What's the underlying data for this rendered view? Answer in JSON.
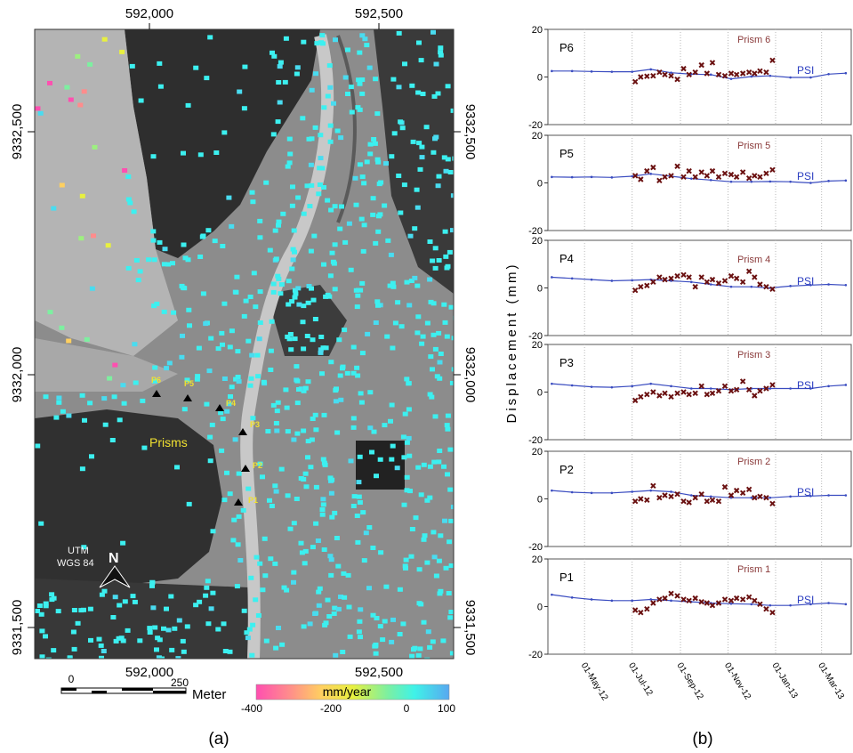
{
  "map": {
    "top_x_ticks": [
      "592,000",
      "592,500"
    ],
    "bottom_x_ticks": [
      "592,000",
      "592,500"
    ],
    "left_y_ticks": [
      "9332,500",
      "9332,000",
      "9331,500"
    ],
    "right_y_ticks": [
      "9332,500",
      "9332,000",
      "9331,500"
    ],
    "prism_labels": [
      "P6",
      "P5",
      "P4",
      "P3",
      "P2",
      "P1"
    ],
    "prisms_label": "Prisms",
    "north_label": "N",
    "crs_label_1": "UTM",
    "crs_label_2": "WGS 84",
    "scalebar": {
      "start": "0",
      "end": "250",
      "unit": "Meter"
    },
    "colorbar": {
      "title": "mm/year",
      "ticks": [
        "-400",
        "-200",
        "0",
        "100"
      ],
      "colors": [
        "#ff4fb0",
        "#ff8c8c",
        "#ffd060",
        "#e8f040",
        "#7df0a0",
        "#3ff2e8",
        "#58a8f0"
      ]
    },
    "colors": {
      "ps_cyan": "#3cf0f0",
      "prism_marker": "#000000",
      "prism_text": "#f0e030"
    }
  },
  "chart_data": [
    {
      "type": "line",
      "panel_label": "P6",
      "series_labels": [
        "Prism 6",
        "PSI"
      ],
      "ylim": [
        -20,
        20
      ],
      "yticks": [
        "20",
        "0",
        "-20"
      ],
      "x_ticks": [
        "01-May-12",
        "01-Jul-12",
        "01-Sep-12",
        "01-Nov-12",
        "01-Jan-13",
        "01-Mar-13"
      ],
      "series": [
        {
          "name": "PSI",
          "x": [
            "2012-03-20",
            "2012-04-15",
            "2012-05-10",
            "2012-06-05",
            "2012-07-01",
            "2012-07-25",
            "2012-08-20",
            "2012-09-15",
            "2012-10-10",
            "2012-11-05",
            "2012-12-01",
            "2012-12-25",
            "2013-01-20",
            "2013-02-15",
            "2013-03-10",
            "2013-04-01"
          ],
          "values": [
            2.5,
            2.5,
            2.3,
            2.2,
            2.2,
            3.2,
            1.8,
            1.2,
            1.0,
            -0.8,
            0.2,
            0.5,
            -0.2,
            -0.2,
            1.2,
            1.6
          ]
        },
        {
          "name": "Prism 6",
          "x": [
            "2012-07-05",
            "2012-07-12",
            "2012-07-20",
            "2012-07-28",
            "2012-08-05",
            "2012-08-12",
            "2012-08-20",
            "2012-08-28",
            "2012-09-05",
            "2012-09-12",
            "2012-09-20",
            "2012-09-28",
            "2012-10-05",
            "2012-10-12",
            "2012-10-20",
            "2012-10-28",
            "2012-11-05",
            "2012-11-12",
            "2012-11-20",
            "2012-11-28",
            "2012-12-05",
            "2012-12-12",
            "2012-12-20",
            "2012-12-28"
          ],
          "values": [
            -2.0,
            0.0,
            0.3,
            0.5,
            2.0,
            1.0,
            0.5,
            -1.0,
            3.5,
            1.0,
            2.0,
            5.0,
            1.5,
            6.0,
            1.0,
            0.5,
            1.5,
            1.0,
            1.5,
            2.0,
            1.5,
            2.5,
            2.0,
            7.0
          ]
        }
      ]
    },
    {
      "type": "line",
      "panel_label": "P5",
      "series_labels": [
        "Prism 5",
        "PSI"
      ],
      "ylim": [
        -20,
        20
      ],
      "yticks": [
        "20",
        "0",
        "-20"
      ],
      "x_ticks": [
        "01-May-12",
        "01-Jul-12",
        "01-Sep-12",
        "01-Nov-12",
        "01-Jan-13",
        "01-Mar-13"
      ],
      "series": [
        {
          "name": "PSI",
          "x": [
            "2012-03-20",
            "2012-04-15",
            "2012-05-10",
            "2012-06-05",
            "2012-07-01",
            "2012-07-25",
            "2012-08-20",
            "2012-09-15",
            "2012-10-10",
            "2012-11-05",
            "2012-12-01",
            "2012-12-25",
            "2013-01-20",
            "2013-02-15",
            "2013-03-10",
            "2013-04-01"
          ],
          "values": [
            2.5,
            2.4,
            2.5,
            2.3,
            2.8,
            3.8,
            2.8,
            1.8,
            1.2,
            0.5,
            0.5,
            0.6,
            0.5,
            0.0,
            0.8,
            1.0
          ]
        },
        {
          "name": "Prism 5",
          "x": [
            "2012-07-05",
            "2012-07-12",
            "2012-07-20",
            "2012-07-28",
            "2012-08-05",
            "2012-08-12",
            "2012-08-20",
            "2012-08-28",
            "2012-09-05",
            "2012-09-12",
            "2012-09-20",
            "2012-09-28",
            "2012-10-05",
            "2012-10-12",
            "2012-10-20",
            "2012-10-28",
            "2012-11-05",
            "2012-11-12",
            "2012-11-20",
            "2012-11-28",
            "2012-12-05",
            "2012-12-12",
            "2012-12-20",
            "2012-12-28"
          ],
          "values": [
            3.0,
            1.5,
            5.0,
            6.5,
            1.0,
            2.5,
            3.0,
            7.0,
            2.5,
            5.0,
            2.5,
            4.5,
            3.0,
            5.0,
            2.5,
            4.0,
            3.5,
            2.5,
            4.5,
            2.0,
            3.0,
            2.5,
            4.0,
            5.5
          ]
        }
      ]
    },
    {
      "type": "line",
      "panel_label": "P4",
      "series_labels": [
        "Prism 4",
        "PSI"
      ],
      "ylim": [
        -20,
        20
      ],
      "yticks": [
        "20",
        "0",
        "-20"
      ],
      "x_ticks": [
        "01-May-12",
        "01-Jul-12",
        "01-Sep-12",
        "01-Nov-12",
        "01-Jan-13",
        "01-Mar-13"
      ],
      "series": [
        {
          "name": "PSI",
          "x": [
            "2012-03-20",
            "2012-04-15",
            "2012-05-10",
            "2012-06-05",
            "2012-07-01",
            "2012-07-25",
            "2012-08-20",
            "2012-09-15",
            "2012-10-10",
            "2012-11-05",
            "2012-12-01",
            "2012-12-25",
            "2013-01-20",
            "2013-02-15",
            "2013-03-10",
            "2013-04-01"
          ],
          "values": [
            4.5,
            4.0,
            3.5,
            3.0,
            3.2,
            3.5,
            3.0,
            2.5,
            1.5,
            0.5,
            0.5,
            0.0,
            0.8,
            1.2,
            1.5,
            1.2
          ]
        },
        {
          "name": "Prism 4",
          "x": [
            "2012-07-05",
            "2012-07-12",
            "2012-07-20",
            "2012-07-28",
            "2012-08-05",
            "2012-08-12",
            "2012-08-20",
            "2012-08-28",
            "2012-09-05",
            "2012-09-12",
            "2012-09-20",
            "2012-09-28",
            "2012-10-05",
            "2012-10-12",
            "2012-10-20",
            "2012-10-28",
            "2012-11-05",
            "2012-11-12",
            "2012-11-20",
            "2012-11-28",
            "2012-12-05",
            "2012-12-12",
            "2012-12-20",
            "2012-12-28"
          ],
          "values": [
            -1.0,
            0.5,
            1.0,
            2.5,
            4.5,
            3.5,
            4.0,
            5.0,
            5.5,
            4.5,
            0.5,
            4.5,
            2.5,
            3.5,
            2.0,
            3.0,
            5.0,
            4.0,
            2.5,
            7.0,
            4.5,
            1.5,
            0.5,
            -0.5
          ]
        }
      ]
    },
    {
      "type": "line",
      "panel_label": "P3",
      "series_labels": [
        "Prism 3",
        "PSI"
      ],
      "ylim": [
        -20,
        20
      ],
      "yticks": [
        "20",
        "0",
        "-20"
      ],
      "x_ticks": [
        "01-May-12",
        "01-Jul-12",
        "01-Sep-12",
        "01-Nov-12",
        "01-Jan-13",
        "01-Mar-13"
      ],
      "series": [
        {
          "name": "PSI",
          "x": [
            "2012-03-20",
            "2012-04-15",
            "2012-05-10",
            "2012-06-05",
            "2012-07-01",
            "2012-07-25",
            "2012-08-20",
            "2012-09-15",
            "2012-10-10",
            "2012-11-05",
            "2012-12-01",
            "2012-12-25",
            "2013-01-20",
            "2013-02-15",
            "2013-03-10",
            "2013-04-01"
          ],
          "values": [
            3.5,
            2.8,
            2.2,
            2.0,
            2.5,
            3.5,
            2.5,
            1.5,
            1.5,
            1.0,
            1.5,
            1.5,
            1.5,
            1.5,
            2.5,
            3.0
          ]
        },
        {
          "name": "Prism 3",
          "x": [
            "2012-07-05",
            "2012-07-12",
            "2012-07-20",
            "2012-07-28",
            "2012-08-05",
            "2012-08-12",
            "2012-08-20",
            "2012-08-28",
            "2012-09-05",
            "2012-09-12",
            "2012-09-20",
            "2012-09-28",
            "2012-10-05",
            "2012-10-12",
            "2012-10-20",
            "2012-10-28",
            "2012-11-05",
            "2012-11-12",
            "2012-11-20",
            "2012-11-28",
            "2012-12-05",
            "2012-12-12",
            "2012-12-20",
            "2012-12-28"
          ],
          "values": [
            -3.5,
            -2.0,
            -1.0,
            0.0,
            -1.5,
            -0.5,
            -2.0,
            -0.5,
            0.0,
            -1.0,
            -0.5,
            2.5,
            -1.0,
            -0.5,
            0.5,
            2.5,
            0.5,
            1.0,
            4.5,
            1.0,
            -1.5,
            0.5,
            1.5,
            3.0
          ]
        }
      ]
    },
    {
      "type": "line",
      "panel_label": "P2",
      "series_labels": [
        "Prism 2",
        "PSI"
      ],
      "ylim": [
        -20,
        20
      ],
      "yticks": [
        "20",
        "0",
        "-20"
      ],
      "x_ticks": [
        "01-May-12",
        "01-Jul-12",
        "01-Sep-12",
        "01-Nov-12",
        "01-Jan-13",
        "01-Mar-13"
      ],
      "series": [
        {
          "name": "PSI",
          "x": [
            "2012-03-20",
            "2012-04-15",
            "2012-05-10",
            "2012-06-05",
            "2012-07-01",
            "2012-07-25",
            "2012-08-20",
            "2012-09-15",
            "2012-10-10",
            "2012-11-05",
            "2012-12-01",
            "2012-12-25",
            "2013-01-20",
            "2013-02-15",
            "2013-03-10",
            "2013-04-01"
          ],
          "values": [
            3.5,
            2.8,
            2.5,
            2.5,
            3.0,
            3.5,
            3.0,
            1.5,
            1.0,
            0.5,
            0.5,
            0.5,
            1.0,
            1.2,
            1.5,
            1.5
          ]
        },
        {
          "name": "Prism 2",
          "x": [
            "2012-07-05",
            "2012-07-12",
            "2012-07-20",
            "2012-07-28",
            "2012-08-05",
            "2012-08-12",
            "2012-08-20",
            "2012-08-28",
            "2012-09-05",
            "2012-09-12",
            "2012-09-20",
            "2012-09-28",
            "2012-10-05",
            "2012-10-12",
            "2012-10-20",
            "2012-10-28",
            "2012-11-05",
            "2012-11-12",
            "2012-11-20",
            "2012-11-28",
            "2012-12-05",
            "2012-12-12",
            "2012-12-20",
            "2012-12-28"
          ],
          "values": [
            -1.0,
            0.0,
            -0.5,
            5.5,
            0.5,
            1.5,
            1.0,
            2.0,
            -1.0,
            -1.5,
            0.5,
            2.0,
            -1.0,
            -0.5,
            -1.0,
            5.0,
            1.5,
            3.5,
            2.5,
            4.0,
            0.5,
            1.0,
            0.5,
            -2.0
          ]
        }
      ]
    },
    {
      "type": "line",
      "panel_label": "P1",
      "series_labels": [
        "Prism 1",
        "PSI"
      ],
      "ylim": [
        -20,
        20
      ],
      "yticks": [
        "20",
        "0",
        "-20"
      ],
      "x_ticks": [
        "01-May-12",
        "01-Jul-12",
        "01-Sep-12",
        "01-Nov-12",
        "01-Jan-13",
        "01-Mar-13"
      ],
      "series": [
        {
          "name": "PSI",
          "x": [
            "2012-03-20",
            "2012-04-15",
            "2012-05-10",
            "2012-06-05",
            "2012-07-01",
            "2012-07-25",
            "2012-08-20",
            "2012-09-15",
            "2012-10-10",
            "2012-11-05",
            "2012-12-01",
            "2012-12-25",
            "2013-01-20",
            "2013-02-15",
            "2013-03-10",
            "2013-04-01"
          ],
          "values": [
            5.0,
            3.8,
            3.0,
            2.5,
            2.5,
            3.0,
            2.5,
            2.0,
            1.5,
            1.2,
            1.0,
            0.5,
            0.5,
            1.0,
            1.5,
            1.0
          ]
        },
        {
          "name": "Prism 1",
          "x": [
            "2012-07-05",
            "2012-07-12",
            "2012-07-20",
            "2012-07-28",
            "2012-08-05",
            "2012-08-12",
            "2012-08-20",
            "2012-08-28",
            "2012-09-05",
            "2012-09-12",
            "2012-09-20",
            "2012-09-28",
            "2012-10-05",
            "2012-10-12",
            "2012-10-20",
            "2012-10-28",
            "2012-11-05",
            "2012-11-12",
            "2012-11-20",
            "2012-11-28",
            "2012-12-05",
            "2012-12-12",
            "2012-12-20",
            "2012-12-28"
          ],
          "values": [
            -1.5,
            -2.5,
            -1.0,
            1.5,
            3.0,
            3.5,
            5.5,
            4.5,
            3.0,
            2.5,
            3.5,
            2.0,
            1.5,
            0.5,
            1.5,
            3.0,
            2.5,
            3.5,
            3.0,
            4.0,
            2.5,
            1.0,
            -1.0,
            -2.5
          ]
        }
      ]
    }
  ],
  "chart_ylabel": "Displacement (mm)",
  "captions": {
    "a": "(a)",
    "b": "(b)"
  }
}
